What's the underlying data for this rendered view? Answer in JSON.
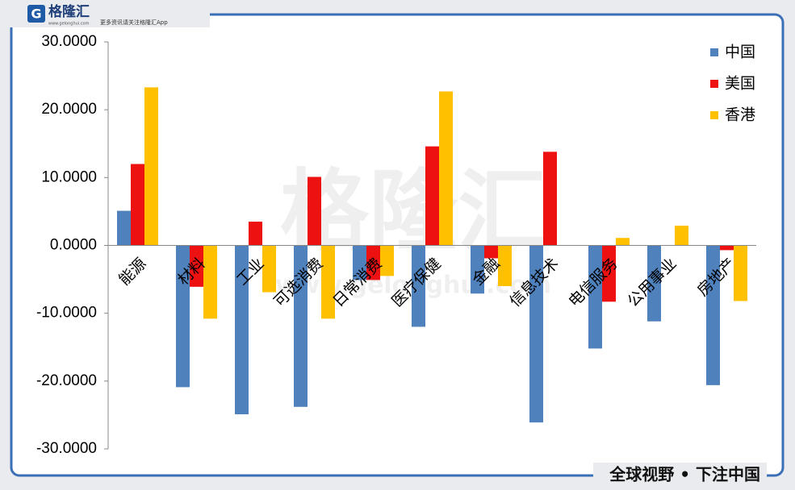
{
  "header": {
    "brand": "格隆汇",
    "slogan": "更多资讯请关注格隆汇App",
    "site": "www.gelonghui.com"
  },
  "footer": {
    "text": "全球视野 • 下注中国"
  },
  "watermark": {
    "text": "格隆汇",
    "site": "www.gelonghui.com"
  },
  "chart_data": {
    "type": "bar",
    "categories": [
      "能源",
      "材料",
      "工业",
      "可选消费",
      "日常消费",
      "医疗保健",
      "金融",
      "信息技术",
      "电信服务",
      "公用事业",
      "房地产"
    ],
    "series": [
      {
        "name": "中国",
        "color": "#4f81bd",
        "values": [
          5.1,
          -20.9,
          -24.9,
          -23.8,
          -5.1,
          -12.0,
          -7.1,
          -26.1,
          -15.2,
          -11.2,
          -20.6
        ]
      },
      {
        "name": "美国",
        "color": "#ee1111",
        "values": [
          12.0,
          -6.1,
          3.5,
          10.1,
          -5.1,
          14.6,
          -1.9,
          13.8,
          -8.3,
          0,
          -0.7
        ]
      },
      {
        "name": "香港",
        "color": "#ffc000",
        "values": [
          23.3,
          -10.8,
          -6.9,
          -10.8,
          -4.5,
          22.7,
          -6.0,
          0,
          1.1,
          2.9,
          -8.2
        ]
      }
    ],
    "ylim": [
      -30,
      30
    ],
    "yticks": [
      {
        "value": -30,
        "label": "-30.0000"
      },
      {
        "value": -20,
        "label": "-20.0000"
      },
      {
        "value": -10,
        "label": "-10.0000"
      },
      {
        "value": 0,
        "label": "0.0000"
      },
      {
        "value": 10,
        "label": "10.0000"
      },
      {
        "value": 20,
        "label": "20.0000"
      },
      {
        "value": 30,
        "label": "30.0000"
      }
    ],
    "legend": "top-right",
    "grid": false
  }
}
